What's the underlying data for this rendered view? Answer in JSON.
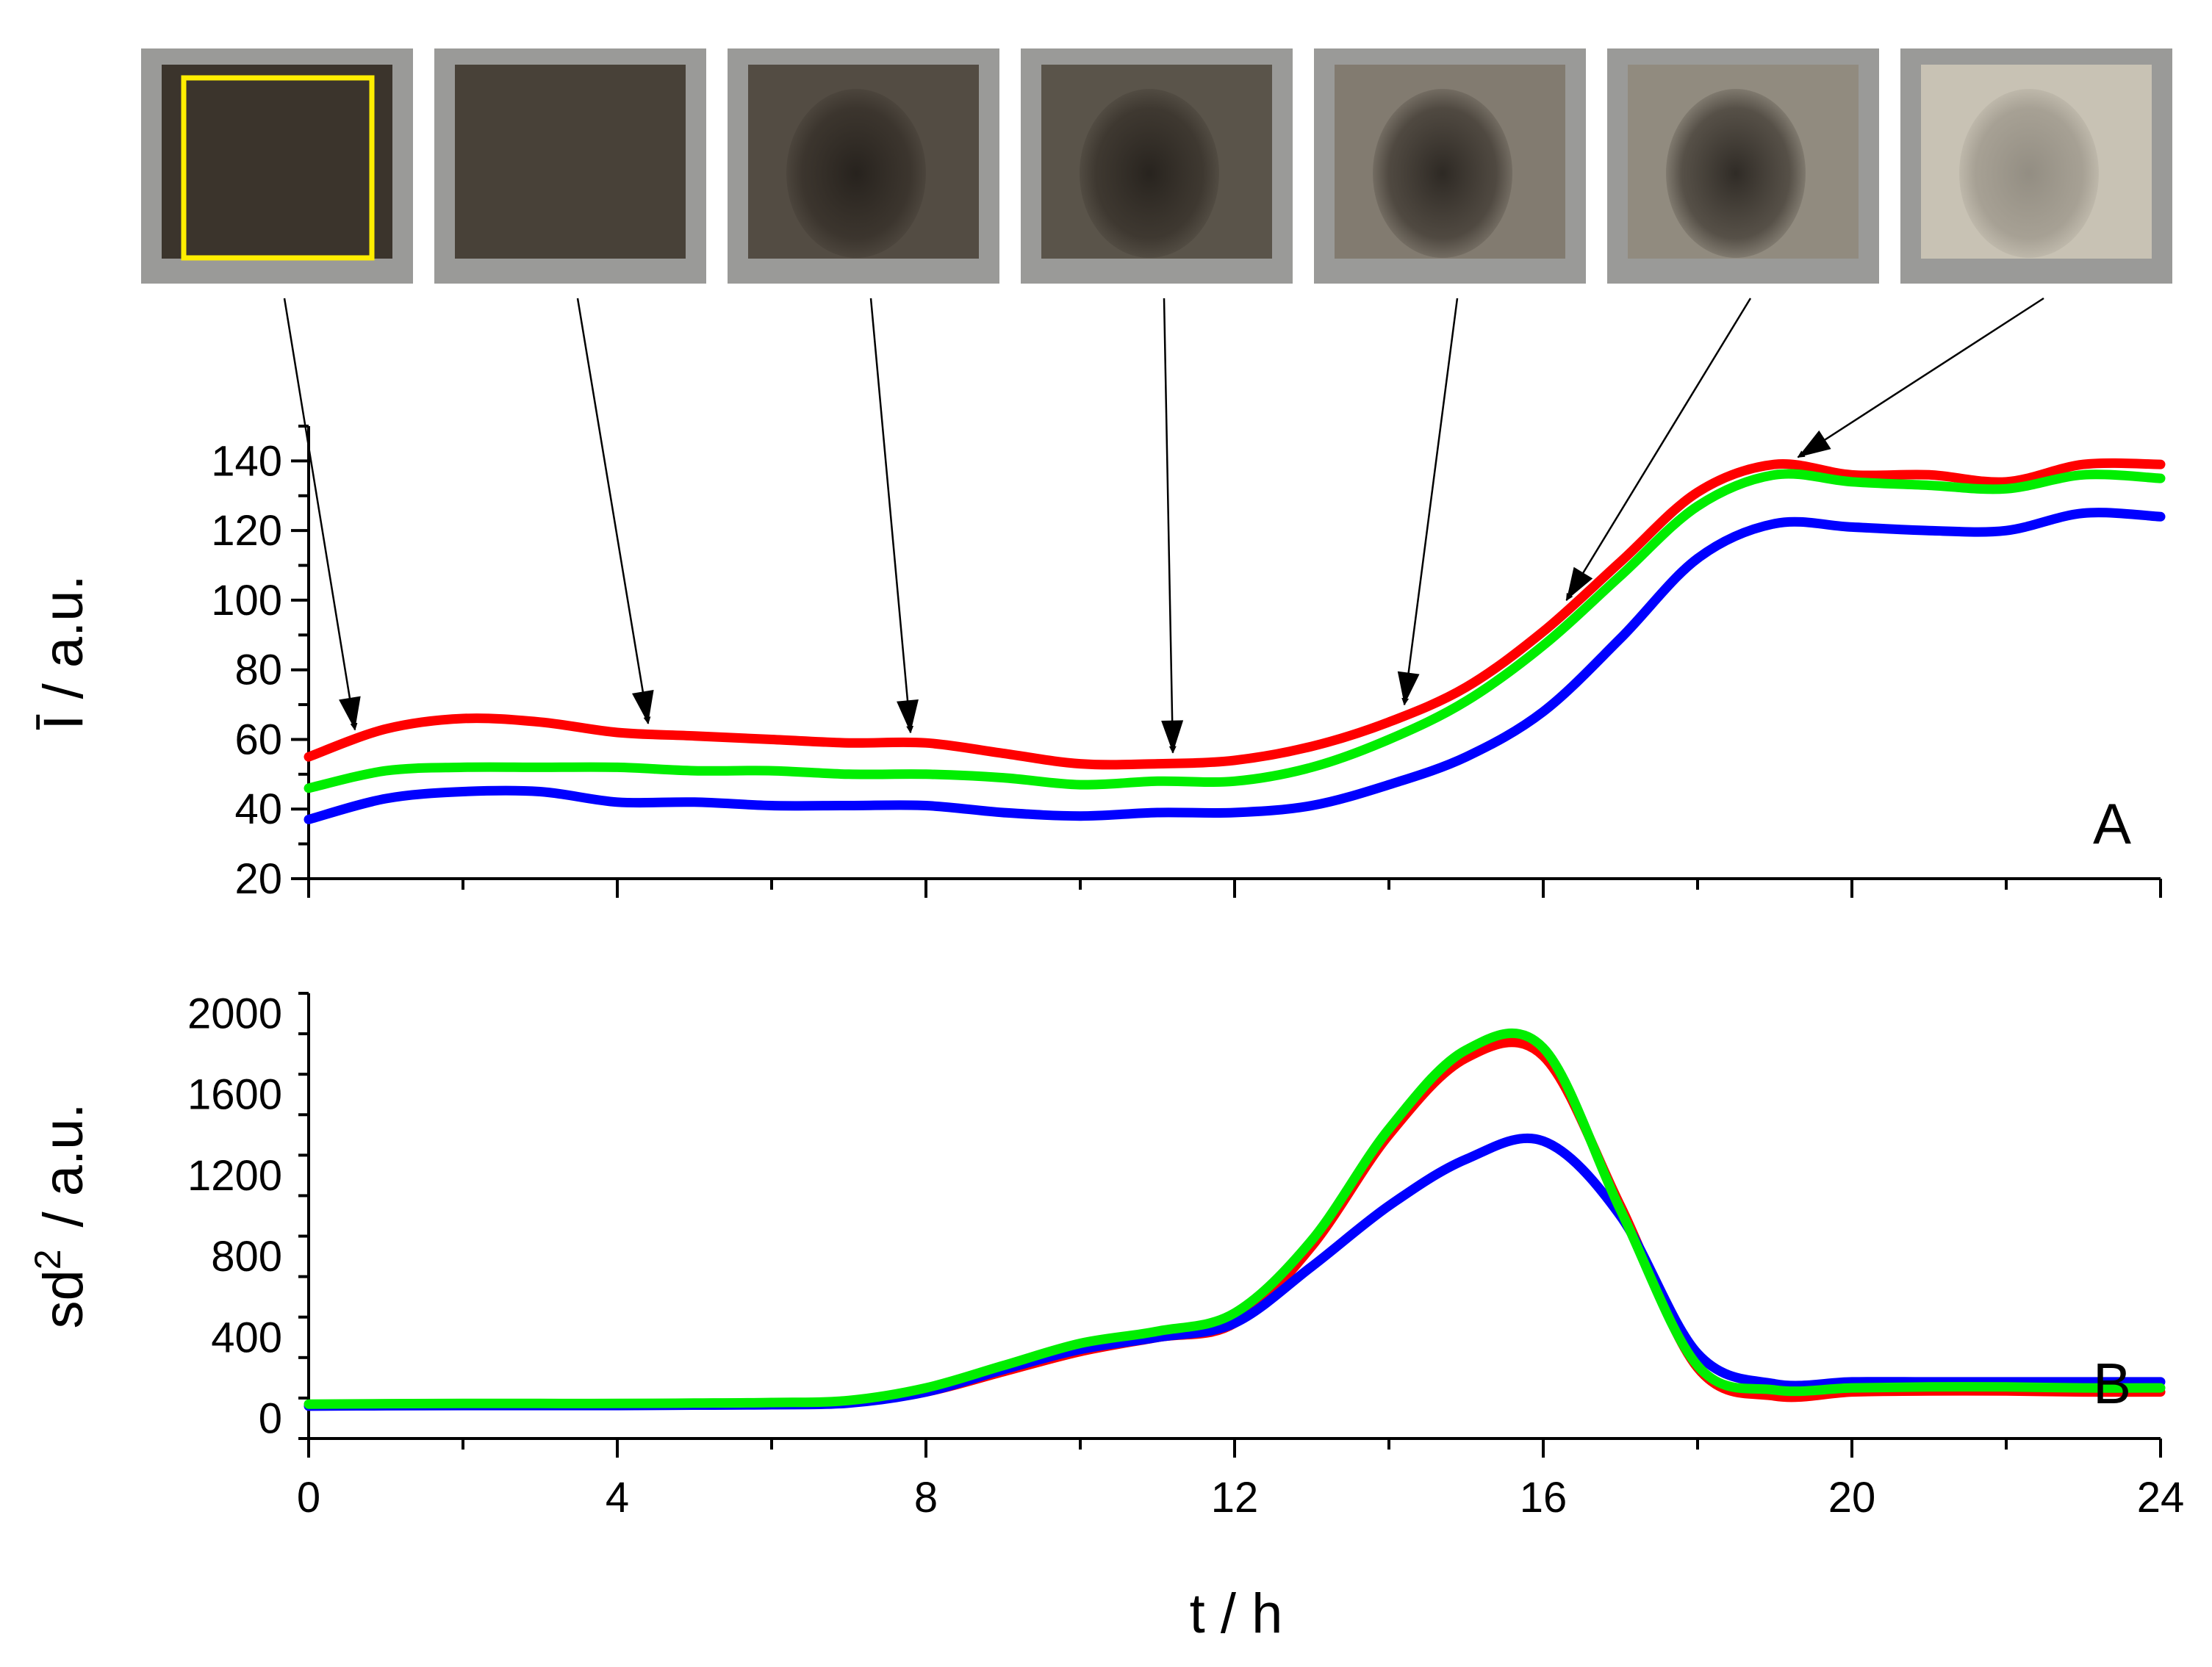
{
  "colors": {
    "photo_dark": "#3b342c",
    "photo_frame": "#9a9a98",
    "photo_light": "#d8d2c3",
    "roi_box": "#ffee00"
  },
  "photos": [
    {
      "t": 0.6,
      "darkness": 1.0,
      "roi": true
    },
    {
      "t": 4.4,
      "darkness": 0.92,
      "roi": false
    },
    {
      "t": 7.8,
      "darkness": 0.85,
      "roi": false
    },
    {
      "t": 11.2,
      "darkness": 0.8,
      "roi": false
    },
    {
      "t": 14.2,
      "darkness": 0.55,
      "roi": false
    },
    {
      "t": 16.3,
      "darkness": 0.45,
      "roi": false
    },
    {
      "t": 19.3,
      "darkness": 0.1,
      "roi": false
    }
  ],
  "chart_data": [
    {
      "type": "line",
      "panel_label": "A",
      "ylabel": "Ī / a.u.",
      "xlim": [
        0,
        24
      ],
      "ylim": [
        20,
        150
      ],
      "yticks": [
        "20",
        "40",
        "60",
        "80",
        "100",
        "120",
        "140"
      ],
      "x": [
        0,
        1,
        2,
        3,
        4,
        5,
        6,
        7,
        8,
        9,
        10,
        11,
        12,
        13,
        14,
        15,
        16,
        17,
        18,
        19,
        20,
        21,
        22,
        23,
        24
      ],
      "series": [
        {
          "color": "#ff0000",
          "values": [
            55,
            63,
            66,
            65,
            62,
            61,
            60,
            59,
            59,
            56,
            53,
            53,
            54,
            58,
            65,
            75,
            91,
            111,
            131,
            139,
            136,
            136,
            134,
            139,
            139
          ]
        },
        {
          "color": "#00ee00",
          "values": [
            46,
            51,
            52,
            52,
            52,
            51,
            51,
            50,
            50,
            49,
            47,
            48,
            48,
            52,
            60,
            71,
            87,
            107,
            127,
            136,
            134,
            133,
            132,
            136,
            135
          ]
        },
        {
          "color": "#0000ff",
          "values": [
            37,
            43,
            45,
            45,
            42,
            42,
            41,
            41,
            41,
            39,
            38,
            39,
            39,
            41,
            47,
            55,
            68,
            89,
            112,
            122,
            121,
            120,
            120,
            125,
            124
          ]
        }
      ]
    },
    {
      "type": "line",
      "panel_label": "B",
      "ylabel": "sd",
      "ylabel_sup": "2",
      "ylabel_unit": "/ a.u.",
      "xlabel": "t / h",
      "xlim": [
        0,
        24
      ],
      "ylim": [
        -100,
        2100
      ],
      "yticks": [
        "0",
        "400",
        "800",
        "1200",
        "1600",
        "2000"
      ],
      "xticks": [
        "0",
        "4",
        "8",
        "12",
        "16",
        "20",
        "24"
      ],
      "x": [
        0,
        1,
        2,
        3,
        4,
        5,
        6,
        7,
        8,
        9,
        10,
        11,
        12,
        13,
        14,
        15,
        16,
        17,
        18,
        19,
        20,
        21,
        22,
        23,
        24
      ],
      "series": [
        {
          "color": "#ff0000",
          "values": [
            65,
            67,
            68,
            68,
            68,
            70,
            72,
            80,
            130,
            230,
            330,
            400,
            470,
            850,
            1400,
            1780,
            1790,
            1050,
            250,
            110,
            130,
            135,
            135,
            130,
            130
          ]
        },
        {
          "color": "#0000ff",
          "values": [
            60,
            62,
            63,
            63,
            63,
            65,
            67,
            75,
            130,
            240,
            340,
            400,
            470,
            750,
            1050,
            1280,
            1370,
            1000,
            320,
            170,
            180,
            180,
            180,
            180,
            180
          ]
        },
        {
          "color": "#00ee00",
          "values": [
            70,
            72,
            73,
            73,
            73,
            75,
            78,
            88,
            150,
            260,
            370,
            430,
            520,
            880,
            1430,
            1820,
            1830,
            1030,
            260,
            140,
            150,
            155,
            155,
            150,
            150
          ]
        }
      ]
    }
  ]
}
